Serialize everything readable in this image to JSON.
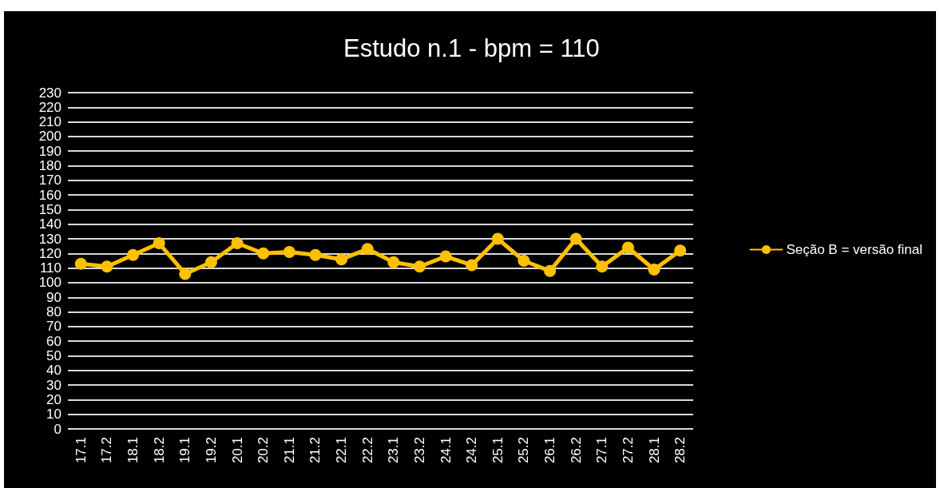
{
  "chart_data": {
    "type": "line",
    "title": "Estudo n.1 - bpm = 110",
    "categories": [
      "17.1",
      "17.2",
      "18.1",
      "18.2",
      "19.1",
      "19.2",
      "20.1",
      "20.2",
      "21.1",
      "21.2",
      "22.1",
      "22.2",
      "23.1",
      "23.2",
      "24.1",
      "24.2",
      "25.1",
      "25.2",
      "26.1",
      "26.2",
      "27.1",
      "27.2",
      "28.1",
      "28.2"
    ],
    "series": [
      {
        "name": "Seção B = versão final",
        "color": "#ffc000",
        "values": [
          113,
          111,
          119,
          127,
          106,
          114,
          127,
          120,
          121,
          119,
          116,
          123,
          114,
          111,
          118,
          112,
          130,
          115,
          108,
          130,
          111,
          124,
          109,
          122
        ]
      }
    ],
    "ylim": [
      0,
      230
    ],
    "yticks": [
      0,
      10,
      20,
      30,
      40,
      50,
      60,
      70,
      80,
      90,
      100,
      110,
      120,
      130,
      140,
      150,
      160,
      170,
      180,
      190,
      200,
      210,
      220,
      230
    ],
    "grid": "y",
    "legend": "right",
    "marker": "circle",
    "line_style": "solid"
  }
}
